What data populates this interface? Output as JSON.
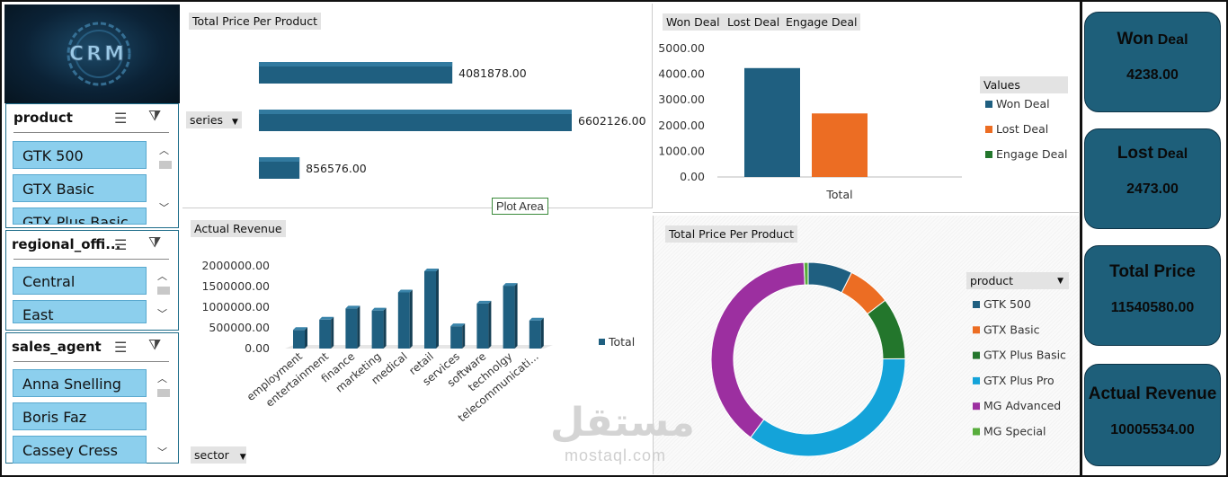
{
  "logo": {
    "text": "CRM"
  },
  "slicers": {
    "product": {
      "title": "product",
      "items": [
        "GTK 500",
        "GTX Basic",
        "GTX Plus Basic"
      ]
    },
    "regional": {
      "title": "regional_offi...",
      "items": [
        "Central",
        "East"
      ]
    },
    "agent": {
      "title": "sales_agent",
      "items": [
        "Anna Snelling",
        "Boris Faz",
        "Cassey Cress"
      ]
    }
  },
  "bar_chart": {
    "title": "Total Price Per Product",
    "field_button": "series",
    "tooltip": "Plot Area"
  },
  "deal_chart": {
    "tabs": [
      "Won Deal",
      "Lost Deal",
      "Engage Deal"
    ],
    "legend_title": "Values"
  },
  "revenue_chart": {
    "title": "Actual Revenue",
    "field_button": "sector"
  },
  "donut_chart": {
    "title": "Total Price Per Product",
    "legend_title": "product"
  },
  "kpis": [
    {
      "title_a": "Won",
      "title_b": " Deal",
      "value": "4238.00"
    },
    {
      "title_a": "Lost",
      "title_b": " Deal",
      "value": "2473.00"
    },
    {
      "title_a": "Total Price",
      "title_b": "",
      "value": "11540580.00"
    },
    {
      "title_a": "Actual Revenue",
      "title_b": "",
      "value": "10005534.00"
    }
  ],
  "watermark": {
    "arabic": "مستقل",
    "latin": "mostaql.com"
  },
  "colors": {
    "accent": "#1e5f7a",
    "slicer_fill": "#8ccfed",
    "bar": "#1f5f80",
    "orange": "#ec6d23",
    "green": "#23762c",
    "cyan": "#14a3d9",
    "purple": "#9c2fa0",
    "lightgreen": "#58ad3c"
  },
  "chart_data": [
    {
      "type": "bar",
      "title": "Total Price Per Product",
      "categories": [
        "",
        "",
        ""
      ],
      "values": [
        4081878,
        6602126,
        856576
      ],
      "labels": [
        "4081878.00",
        "6602126.00",
        "856576.00"
      ]
    },
    {
      "type": "bar",
      "categories": [
        "Total"
      ],
      "series": [
        {
          "name": "Won Deal",
          "values": [
            4238
          ]
        },
        {
          "name": "Lost Deal",
          "values": [
            2473
          ]
        },
        {
          "name": "Engage Deal",
          "values": [
            0
          ]
        }
      ],
      "ylim": [
        0,
        5000
      ],
      "yticks": [
        "5000.00",
        "4000.00",
        "3000.00",
        "2000.00",
        "1000.00",
        "0.00"
      ],
      "legend": "right"
    },
    {
      "type": "bar",
      "title": "Actual Revenue",
      "categories": [
        "employment",
        "entertainment",
        "finance",
        "marketing",
        "medical",
        "retail",
        "services",
        "software",
        "technolgy",
        "telecommunicati..."
      ],
      "series": [
        {
          "name": "Total",
          "values": [
            450000,
            700000,
            970000,
            920000,
            1360000,
            1870000,
            540000,
            1090000,
            1520000,
            680000
          ]
        }
      ],
      "ylim": [
        0,
        2000000
      ],
      "yticks": [
        "2000000.00",
        "1500000.00",
        "1000000.00",
        "500000.00",
        "0.00"
      ],
      "legend": "right"
    },
    {
      "type": "pie",
      "title": "Total Price Per Product",
      "categories": [
        "GTK 500",
        "GTX Basic",
        "GTX Plus Basic",
        "GTX Plus Pro",
        "MG Advanced",
        "MG Special"
      ],
      "values": [
        7.4,
        7.2,
        10.3,
        35.2,
        39.2,
        0.7
      ],
      "legend": "right"
    }
  ]
}
